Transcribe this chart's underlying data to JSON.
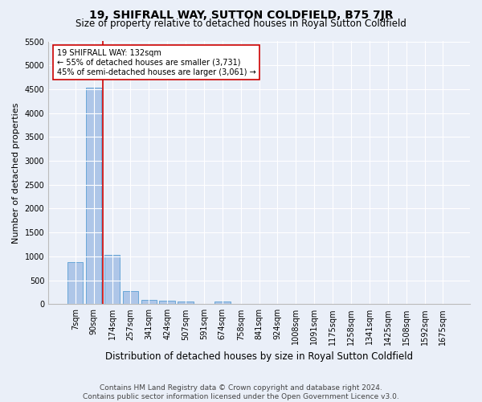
{
  "title": "19, SHIFRALL WAY, SUTTON COLDFIELD, B75 7JR",
  "subtitle": "Size of property relative to detached houses in Royal Sutton Coldfield",
  "xlabel": "Distribution of detached houses by size in Royal Sutton Coldfield",
  "ylabel": "Number of detached properties",
  "footer_line1": "Contains HM Land Registry data © Crown copyright and database right 2024.",
  "footer_line2": "Contains public sector information licensed under the Open Government Licence v3.0.",
  "bar_labels": [
    "7sqm",
    "90sqm",
    "174sqm",
    "257sqm",
    "341sqm",
    "424sqm",
    "507sqm",
    "591sqm",
    "674sqm",
    "758sqm",
    "841sqm",
    "924sqm",
    "1008sqm",
    "1091sqm",
    "1175sqm",
    "1258sqm",
    "1341sqm",
    "1425sqm",
    "1508sqm",
    "1592sqm",
    "1675sqm"
  ],
  "bar_values": [
    880,
    4540,
    1040,
    280,
    95,
    80,
    55,
    0,
    50,
    0,
    0,
    0,
    0,
    0,
    0,
    0,
    0,
    0,
    0,
    0,
    0
  ],
  "bar_color": "#aec6e8",
  "bar_edge_color": "#5a9fd4",
  "annotation_box_text": "19 SHIFRALL WAY: 132sqm\n← 55% of detached houses are smaller (3,731)\n45% of semi-detached houses are larger (3,061) →",
  "vline_x": 1.5,
  "vline_color": "#cc0000",
  "box_color": "#ffffff",
  "box_edge_color": "#cc0000",
  "ylim": [
    0,
    5500
  ],
  "yticks": [
    0,
    500,
    1000,
    1500,
    2000,
    2500,
    3000,
    3500,
    4000,
    4500,
    5000,
    5500
  ],
  "bg_color": "#eaeff8",
  "grid_color": "#ffffff",
  "title_fontsize": 10,
  "subtitle_fontsize": 8.5,
  "xlabel_fontsize": 8.5,
  "ylabel_fontsize": 8,
  "tick_fontsize": 7,
  "annotation_fontsize": 7,
  "footer_fontsize": 6.5
}
